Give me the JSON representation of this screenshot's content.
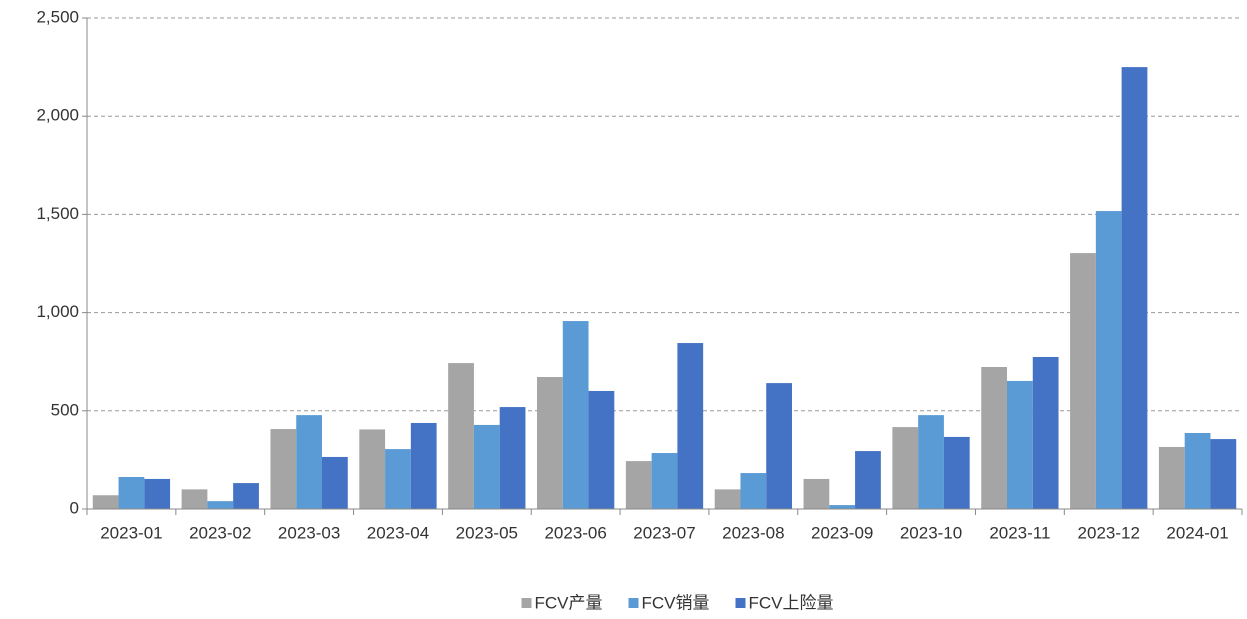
{
  "chart_data": {
    "type": "bar",
    "categories": [
      "2023-01",
      "2023-02",
      "2023-03",
      "2023-04",
      "2023-05",
      "2023-06",
      "2023-07",
      "2023-08",
      "2023-09",
      "2023-10",
      "2023-11",
      "2023-12",
      "2024-01"
    ],
    "series": [
      {
        "name": "FCV产量",
        "color": "#a5a5a5",
        "values": [
          70,
          100,
          407,
          405,
          743,
          672,
          244,
          100,
          153,
          417,
          723,
          1303,
          316
        ]
      },
      {
        "name": "FCV销量",
        "color": "#5b9bd5",
        "values": [
          163,
          40,
          478,
          305,
          428,
          957,
          285,
          183,
          20,
          478,
          652,
          1517,
          387
        ]
      },
      {
        "name": "FCV上险量",
        "color": "#4472c4",
        "values": [
          153,
          132,
          265,
          438,
          519,
          601,
          845,
          641,
          295,
          367,
          774,
          2250,
          356
        ]
      }
    ],
    "ylim": [
      0,
      2500
    ],
    "yticks": [
      0,
      500,
      {
        "value": 1000,
        "label": "1,000"
      },
      {
        "value": 1500,
        "label": "1,500"
      },
      {
        "value": 2000,
        "label": "2,000"
      },
      {
        "value": 2500,
        "label": "2,500"
      }
    ],
    "grid": true,
    "legend": "bottom"
  }
}
